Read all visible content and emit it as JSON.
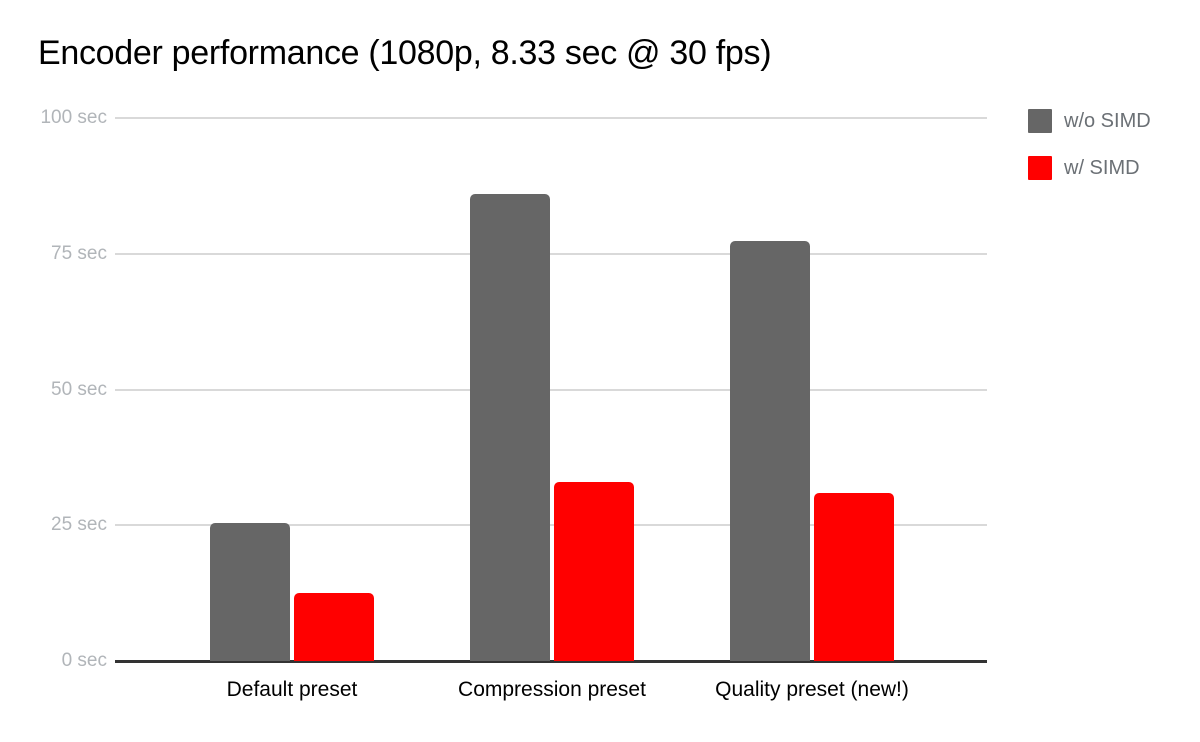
{
  "chart_data": {
    "type": "bar",
    "title": "Encoder performance (1080p, 8.33 sec @ 30 fps)",
    "categories": [
      "Default preset",
      "Compression preset",
      "Quality preset (new!)"
    ],
    "series": [
      {
        "name": "w/o SIMD",
        "color": "#666666",
        "values": [
          25.5,
          86.0,
          77.3
        ]
      },
      {
        "name": "w/ SIMD",
        "color": "#ff0000",
        "values": [
          12.6,
          33.0,
          31.0
        ]
      }
    ],
    "unit": "sec",
    "ylim": [
      0,
      100
    ],
    "yticks": [
      {
        "value": 100,
        "label": "100 sec"
      },
      {
        "value": 75,
        "label": "75 sec"
      },
      {
        "value": 50,
        "label": "50 sec"
      },
      {
        "value": 25,
        "label": "25 sec"
      },
      {
        "value": 0,
        "label": "0 sec"
      }
    ],
    "grid": true,
    "legend_position": "right",
    "colors": {
      "background": "#ffffff",
      "grid_line": "#d9d9d9",
      "axis_line": "#333333",
      "y_tick_text": "#b1b5b9",
      "x_tick_text": "#000000",
      "legend_text": "#6b7075",
      "title_text": "#000000"
    }
  }
}
